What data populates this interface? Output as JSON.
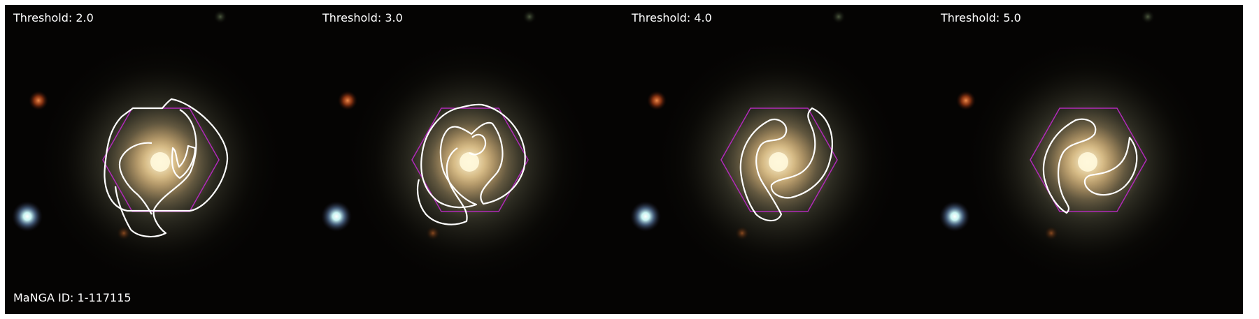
{
  "panels": [
    {
      "threshold_label": "Threshold: 2.0"
    },
    {
      "threshold_label": "Threshold: 3.0"
    },
    {
      "threshold_label": "Threshold: 4.0"
    },
    {
      "threshold_label": "Threshold: 5.0"
    }
  ],
  "manga_id_label": "MaNGA ID: 1-117115",
  "colors": {
    "contour": "#ffffff",
    "ifu_hexagon": "#b02ab8",
    "sky_background": "#050403"
  }
}
